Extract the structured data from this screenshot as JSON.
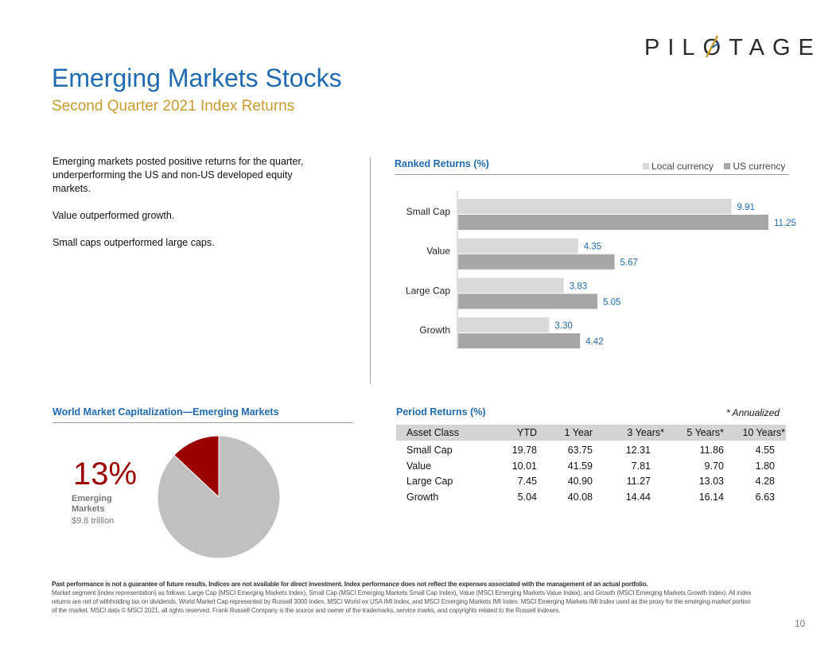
{
  "logo": {
    "text_before": "PIL",
    "text_o": "O",
    "text_after": "TAGE"
  },
  "header": {
    "title": "Emerging Markets Stocks",
    "subtitle": "Second Quarter 2021 Index Returns"
  },
  "intro": {
    "p1": "Emerging markets posted positive returns for the quarter, underperforming  the US and non-US developed  equity markets.",
    "p2": "Value outperformed  growth.",
    "p3": "Small caps outperformed  large caps."
  },
  "colors": {
    "accent_blue": "#1f6ab0",
    "gold": "#c99a2e",
    "local_bar": "#d9d9d9",
    "us_bar": "#a6a6a6",
    "emerging_red": "#9b0000",
    "pie_gray": "#c0c0c0"
  },
  "chart_data": [
    {
      "type": "bar",
      "orientation": "horizontal",
      "title": "Ranked Returns (%)",
      "categories": [
        "Small Cap",
        "Value",
        "Large Cap",
        "Growth"
      ],
      "series": [
        {
          "name": "Local currency",
          "values": [
            9.91,
            4.35,
            3.83,
            3.3
          ]
        },
        {
          "name": "US currency",
          "values": [
            11.25,
            5.67,
            5.05,
            4.42
          ]
        }
      ],
      "xlim": [
        0,
        12
      ],
      "legend_position": "top-right",
      "grid": false
    },
    {
      "type": "pie",
      "title": "World Market Capitalization—Emerging Markets",
      "slices": [
        {
          "label": "Emerging Markets",
          "value": 13
        },
        {
          "label": "",
          "value": 87
        }
      ],
      "highlight": {
        "percent_text": "13%",
        "label": "Emerging Markets",
        "value_text": "$9.8 trillion"
      }
    },
    {
      "type": "table",
      "title": "Period Returns (%)",
      "note": "* Annualized",
      "columns": [
        "Asset Class",
        "YTD",
        "1 Year",
        "3 Years*",
        "5 Years*",
        "10 Years*"
      ],
      "rows": [
        [
          "Small Cap",
          "19.78",
          "63.75",
          "12.31",
          "11.86",
          "4.55"
        ],
        [
          "Value",
          "10.01",
          "41.59",
          "7.81",
          "9.70",
          "1.80"
        ],
        [
          "Large Cap",
          "7.45",
          "40.90",
          "11.27",
          "13.03",
          "4.28"
        ],
        [
          "Growth",
          "5.04",
          "40.08",
          "14.44",
          "16.14",
          "6.63"
        ]
      ]
    }
  ],
  "footer": {
    "disclaimer_bold": "Past performance is not a guarantee of future results. Indices are not available for direct investment. Index performance does not reflect the expenses associated with the management of an actual portfolio.",
    "disclaimer_text": "Market segment (index representation) as follows: Large Cap (MSCI Emerging Markets Index), Small Cap (MSCI Emerging Markets Small Cap Index), Value (MSCI Emerging Markets Value Index), and Growth (MSCI Emerging Markets Growth Index). All index returns are net of withholding tax on dividends. World Market Cap represented by Russell 3000 Index, MSCI World ex USA IMI Index, and MSCI Emerging Markets IMI Index. MSCI Emerging Markets IMI Index used as the proxy for the emerging market portion of the market. MSCI data © MSCI 2021, all rights reserved. Frank Russell Company is the source and owner of the trademarks, service marks, and copyrights related to the Russell Indexes.",
    "page_number": "10"
  }
}
